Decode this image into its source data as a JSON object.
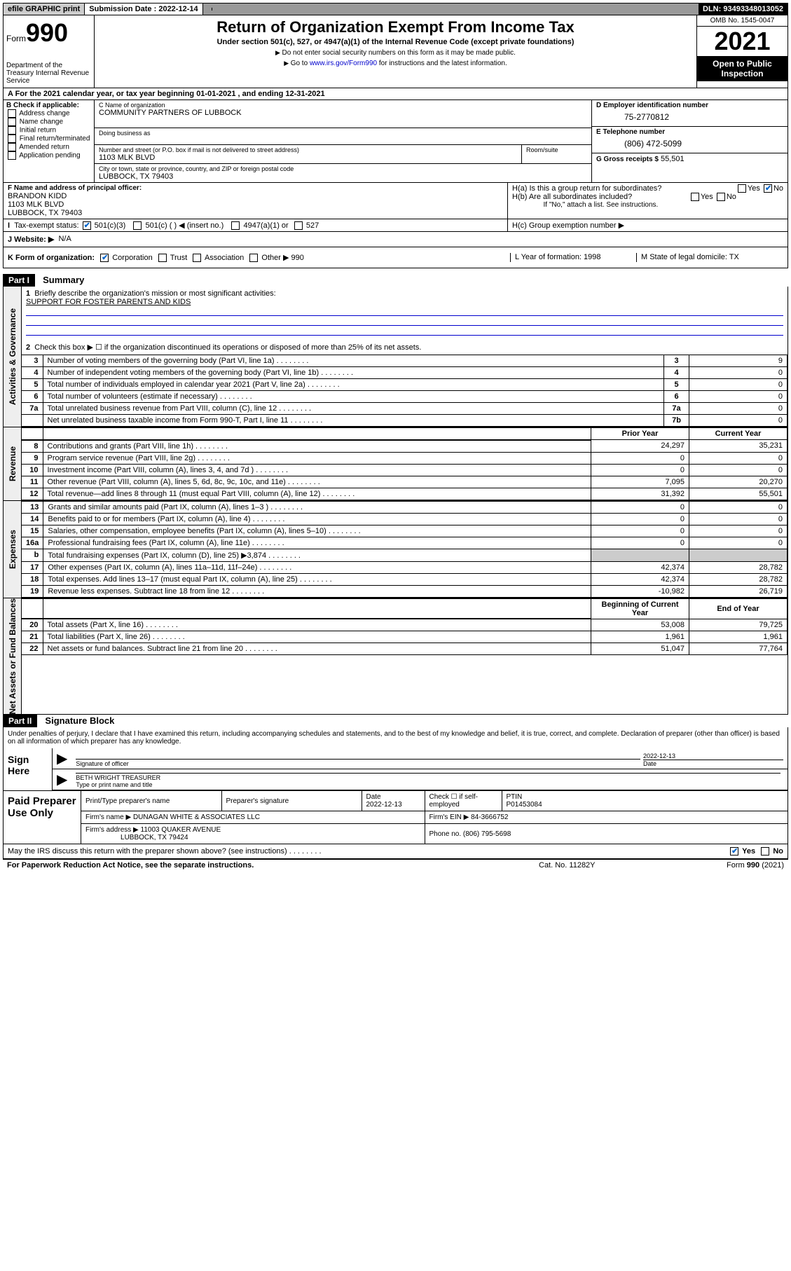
{
  "topbar": {
    "print": "efile GRAPHIC print",
    "sub_label": "Submission Date :",
    "sub_date": "2022-12-14",
    "dln": "DLN: 93493348013052"
  },
  "header": {
    "form_prefix": "Form",
    "form_num": "990",
    "dept": "Department of the Treasury Internal Revenue Service",
    "title": "Return of Organization Exempt From Income Tax",
    "subtitle": "Under section 501(c), 527, or 4947(a)(1) of the Internal Revenue Code (except private foundations)",
    "note1": "Do not enter social security numbers on this form as it may be made public.",
    "note2_pre": "Go to ",
    "note2_link": "www.irs.gov/Form990",
    "note2_post": " for instructions and the latest information.",
    "omb": "OMB No. 1545-0047",
    "year": "2021",
    "open": "Open to Public Inspection"
  },
  "row_a": "A For the 2021 calendar year, or tax year beginning 01-01-2021   , and ending 12-31-2021",
  "col_b": {
    "title": "B Check if applicable:",
    "opts": [
      "Address change",
      "Name change",
      "Initial return",
      "Final return/terminated",
      "Amended return",
      "Application pending"
    ]
  },
  "col_c": {
    "name_lbl": "C Name of organization",
    "name": "COMMUNITY PARTNERS OF LUBBOCK",
    "dba_lbl": "Doing business as",
    "addr_lbl": "Number and street (or P.O. box if mail is not delivered to street address)",
    "addr": "1103 MLK BLVD",
    "room_lbl": "Room/suite",
    "city_lbl": "City or town, state or province, country, and ZIP or foreign postal code",
    "city": "LUBBOCK, TX  79403"
  },
  "col_d": {
    "ein_lbl": "D Employer identification number",
    "ein": "75-2770812",
    "tel_lbl": "E Telephone number",
    "tel": "(806) 472-5099",
    "gross_lbl": "G Gross receipts $",
    "gross": "55,501"
  },
  "row_f": {
    "lbl": "F Name and address of principal officer:",
    "name": "BRANDON KIDD",
    "addr1": "1103 MLK BLVD",
    "addr2": "LUBBOCK, TX  79403"
  },
  "row_h": {
    "ha": "H(a)  Is this a group return for subordinates?",
    "hb": "H(b)  Are all subordinates included?",
    "hb_note": "If \"No,\" attach a list. See instructions.",
    "hc": "H(c)  Group exemption number ▶",
    "yes": "Yes",
    "no": "No"
  },
  "row_i": {
    "lbl": "Tax-exempt status:",
    "o1": "501(c)(3)",
    "o2": "501(c) (  ) ◀ (insert no.)",
    "o3": "4947(a)(1) or",
    "o4": "527"
  },
  "row_j": {
    "lbl": "J  Website: ▶",
    "val": "N/A"
  },
  "row_k": {
    "lbl": "K Form of organization:",
    "o1": "Corporation",
    "o2": "Trust",
    "o3": "Association",
    "o4": "Other ▶",
    "o4v": "990",
    "l": "L Year of formation: 1998",
    "m": "M State of legal domicile: TX"
  },
  "part1": {
    "hdr": "Part I",
    "title": "Summary",
    "side_gov": "Activities & Governance",
    "side_rev": "Revenue",
    "side_exp": "Expenses",
    "side_net": "Net Assets or Fund Balances",
    "q1": "Briefly describe the organization's mission or most significant activities:",
    "q1v": "SUPPORT FOR FOSTER PARENTS AND KIDS",
    "q2": "Check this box ▶ ☐  if the organization discontinued its operations or disposed of more than 25% of its net assets.",
    "rows_gov": [
      {
        "n": "3",
        "d": "Number of voting members of the governing body (Part VI, line 1a)",
        "b": "3",
        "v": "9"
      },
      {
        "n": "4",
        "d": "Number of independent voting members of the governing body (Part VI, line 1b)",
        "b": "4",
        "v": "0"
      },
      {
        "n": "5",
        "d": "Total number of individuals employed in calendar year 2021 (Part V, line 2a)",
        "b": "5",
        "v": "0"
      },
      {
        "n": "6",
        "d": "Total number of volunteers (estimate if necessary)",
        "b": "6",
        "v": "0"
      },
      {
        "n": "7a",
        "d": "Total unrelated business revenue from Part VIII, column (C), line 12",
        "b": "7a",
        "v": "0"
      },
      {
        "n": "",
        "d": "Net unrelated business taxable income from Form 990-T, Part I, line 11",
        "b": "7b",
        "v": "0"
      }
    ],
    "col_prior": "Prior Year",
    "col_curr": "Current Year",
    "rows_rev": [
      {
        "n": "8",
        "d": "Contributions and grants (Part VIII, line 1h)",
        "p": "24,297",
        "c": "35,231"
      },
      {
        "n": "9",
        "d": "Program service revenue (Part VIII, line 2g)",
        "p": "0",
        "c": "0"
      },
      {
        "n": "10",
        "d": "Investment income (Part VIII, column (A), lines 3, 4, and 7d )",
        "p": "0",
        "c": "0"
      },
      {
        "n": "11",
        "d": "Other revenue (Part VIII, column (A), lines 5, 6d, 8c, 9c, 10c, and 11e)",
        "p": "7,095",
        "c": "20,270"
      },
      {
        "n": "12",
        "d": "Total revenue—add lines 8 through 11 (must equal Part VIII, column (A), line 12)",
        "p": "31,392",
        "c": "55,501"
      }
    ],
    "rows_exp": [
      {
        "n": "13",
        "d": "Grants and similar amounts paid (Part IX, column (A), lines 1–3 )",
        "p": "0",
        "c": "0"
      },
      {
        "n": "14",
        "d": "Benefits paid to or for members (Part IX, column (A), line 4)",
        "p": "0",
        "c": "0"
      },
      {
        "n": "15",
        "d": "Salaries, other compensation, employee benefits (Part IX, column (A), lines 5–10)",
        "p": "0",
        "c": "0"
      },
      {
        "n": "16a",
        "d": "Professional fundraising fees (Part IX, column (A), line 11e)",
        "p": "0",
        "c": "0"
      },
      {
        "n": "b",
        "d": "Total fundraising expenses (Part IX, column (D), line 25) ▶3,874",
        "p": "",
        "c": "",
        "shade": true
      },
      {
        "n": "17",
        "d": "Other expenses (Part IX, column (A), lines 11a–11d, 11f–24e)",
        "p": "42,374",
        "c": "28,782"
      },
      {
        "n": "18",
        "d": "Total expenses. Add lines 13–17 (must equal Part IX, column (A), line 25)",
        "p": "42,374",
        "c": "28,782"
      },
      {
        "n": "19",
        "d": "Revenue less expenses. Subtract line 18 from line 12",
        "p": "-10,982",
        "c": "26,719"
      }
    ],
    "col_begin": "Beginning of Current Year",
    "col_end": "End of Year",
    "rows_net": [
      {
        "n": "20",
        "d": "Total assets (Part X, line 16)",
        "p": "53,008",
        "c": "79,725"
      },
      {
        "n": "21",
        "d": "Total liabilities (Part X, line 26)",
        "p": "1,961",
        "c": "1,961"
      },
      {
        "n": "22",
        "d": "Net assets or fund balances. Subtract line 21 from line 20",
        "p": "51,047",
        "c": "77,764"
      }
    ]
  },
  "part2": {
    "hdr": "Part II",
    "title": "Signature Block",
    "decl": "Under penalties of perjury, I declare that I have examined this return, including accompanying schedules and statements, and to the best of my knowledge and belief, it is true, correct, and complete. Declaration of preparer (other than officer) is based on all information of which preparer has any knowledge.",
    "sign_here": "Sign Here",
    "sig_officer": "Signature of officer",
    "sig_date": "Date",
    "sig_date_v": "2022-12-13",
    "sig_name": "BETH WRIGHT TREASURER",
    "sig_name_lbl": "Type or print name and title",
    "paid": "Paid Preparer Use Only",
    "p_name_lbl": "Print/Type preparer's name",
    "p_sig_lbl": "Preparer's signature",
    "p_date_lbl": "Date",
    "p_date": "2022-12-13",
    "p_check": "Check ☐ if self-employed",
    "p_ptin_lbl": "PTIN",
    "p_ptin": "P01453084",
    "firm_name_lbl": "Firm's name   ▶",
    "firm_name": "DUNAGAN WHITE & ASSOCIATES LLC",
    "firm_ein_lbl": "Firm's EIN ▶",
    "firm_ein": "84-3666752",
    "firm_addr_lbl": "Firm's address ▶",
    "firm_addr1": "11003 QUAKER AVENUE",
    "firm_addr2": "LUBBOCK, TX  79424",
    "firm_phone_lbl": "Phone no.",
    "firm_phone": "(806) 795-5698",
    "discuss": "May the IRS discuss this return with the preparer shown above? (see instructions)"
  },
  "footer": {
    "left": "For Paperwork Reduction Act Notice, see the separate instructions.",
    "mid": "Cat. No. 11282Y",
    "right": "Form 990 (2021)"
  }
}
